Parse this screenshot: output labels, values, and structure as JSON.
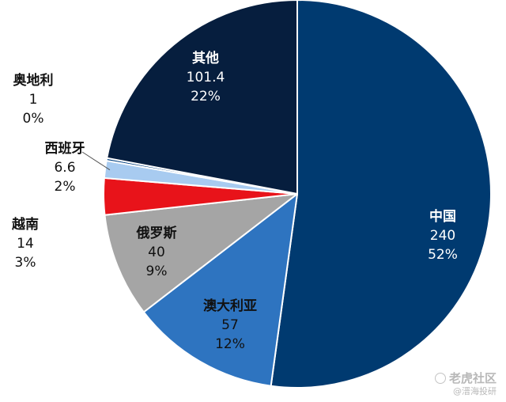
{
  "chart_data": {
    "type": "pie",
    "title": "",
    "slices": [
      {
        "name": "中国",
        "value": 240,
        "percent": "52%",
        "value_label": "240",
        "color": "#003a70"
      },
      {
        "name": "澳大利亚",
        "value": 57,
        "percent": "12%",
        "value_label": "57",
        "color": "#2e74c0"
      },
      {
        "name": "俄罗斯",
        "value": 40,
        "percent": "9%",
        "value_label": "40",
        "color": "#a5a5a5"
      },
      {
        "name": "越南",
        "value": 14,
        "percent": "3%",
        "value_label": "14",
        "color": "#e8131a"
      },
      {
        "name": "西班牙",
        "value": 6.6,
        "percent": "2%",
        "value_label": "6.6",
        "color": "#a8cbf0"
      },
      {
        "name": "奥地利",
        "value": 1,
        "percent": "0%",
        "value_label": "1",
        "color": "#003f7f"
      },
      {
        "name": "其他",
        "value": 101.4,
        "percent": "22%",
        "value_label": "101.4",
        "color": "#061e3e"
      }
    ],
    "start_angle": "12 o'clock",
    "direction": "clockwise",
    "legend": "none"
  },
  "watermark": {
    "main": "老虎社区",
    "sub": "@溍海投研"
  }
}
